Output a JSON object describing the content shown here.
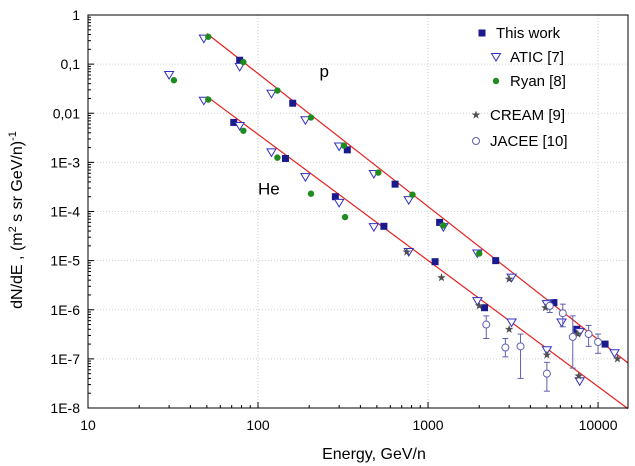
{
  "chart_data": {
    "type": "scatter",
    "xlabel": "Energy, GeV/n",
    "ylabel_parts": [
      "dN/dE , (m",
      "2",
      " s sr  GeV/n)",
      "-1"
    ],
    "x_scale": "log",
    "y_scale": "log",
    "xlim": [
      10,
      15000
    ],
    "ylim": [
      1e-08,
      1
    ],
    "x_ticks": [
      {
        "value": 10,
        "label": "10"
      },
      {
        "value": 100,
        "label": "100"
      },
      {
        "value": 1000,
        "label": "1000"
      },
      {
        "value": 10000,
        "label": "10000"
      }
    ],
    "y_ticks": [
      {
        "value": 1,
        "label": "1"
      },
      {
        "value": 0.1,
        "label": "0,1"
      },
      {
        "value": 0.01,
        "label": "0,01"
      },
      {
        "value": 0.001,
        "label": "1E-3"
      },
      {
        "value": 0.0001,
        "label": "1E-4"
      },
      {
        "value": 1e-05,
        "label": "1E-5"
      },
      {
        "value": 1e-06,
        "label": "1E-6"
      },
      {
        "value": 1e-07,
        "label": "1E-7"
      },
      {
        "value": 1e-08,
        "label": "1E-8"
      }
    ],
    "grid": true,
    "legend_position": "top-right",
    "annotations": [
      {
        "text": "p",
        "x": 230,
        "y": 0.055
      },
      {
        "text": "He",
        "x": 100,
        "y": 0.00022
      }
    ],
    "fits": [
      {
        "x": [
          50,
          15000
        ],
        "y": [
          0.42,
          8.25e-08
        ],
        "color": "#e82020"
      },
      {
        "x": [
          50,
          15000
        ],
        "y": [
          0.022,
          9.65e-09
        ],
        "color": "#e82020"
      }
    ],
    "series": [
      {
        "name": "This work",
        "marker": "square",
        "color": "#1a1a8c",
        "points": [
          {
            "x": 78,
            "y": 0.12
          },
          {
            "x": 160,
            "y": 0.016
          },
          {
            "x": 335,
            "y": 0.0018
          },
          {
            "x": 640,
            "y": 0.00036
          },
          {
            "x": 1170,
            "y": 6e-05
          },
          {
            "x": 2500,
            "y": 1e-05
          },
          {
            "x": 5500,
            "y": 1.4e-06
          },
          {
            "x": 11000,
            "y": 2e-07
          },
          {
            "x": 72,
            "y": 0.0065
          },
          {
            "x": 145,
            "y": 0.0012
          },
          {
            "x": 285,
            "y": 0.0002
          },
          {
            "x": 550,
            "y": 5e-05
          },
          {
            "x": 1100,
            "y": 9.5e-06
          },
          {
            "x": 2150,
            "y": 1.1e-06
          },
          {
            "x": 7500,
            "y": 4e-07
          }
        ]
      },
      {
        "name": "ATIC [7]",
        "marker": "triangle-down-open",
        "color": "#3030c0",
        "points": [
          {
            "x": 30,
            "y": 0.06
          },
          {
            "x": 48,
            "y": 0.33
          },
          {
            "x": 78,
            "y": 0.088
          },
          {
            "x": 120,
            "y": 0.025
          },
          {
            "x": 190,
            "y": 0.0072
          },
          {
            "x": 300,
            "y": 0.0021
          },
          {
            "x": 480,
            "y": 0.00058
          },
          {
            "x": 770,
            "y": 0.00017
          },
          {
            "x": 1230,
            "y": 4.8e-05
          },
          {
            "x": 1950,
            "y": 1.4e-05
          },
          {
            "x": 3100,
            "y": 4.5e-06
          },
          {
            "x": 5000,
            "y": 1.3e-06
          },
          {
            "x": 6100,
            "y": 5.5e-07
          },
          {
            "x": 7800,
            "y": 3.5e-07
          },
          {
            "x": 48,
            "y": 0.018
          },
          {
            "x": 78,
            "y": 0.0055
          },
          {
            "x": 120,
            "y": 0.0016
          },
          {
            "x": 190,
            "y": 0.0005
          },
          {
            "x": 300,
            "y": 0.00015
          },
          {
            "x": 480,
            "y": 4.8e-05
          },
          {
            "x": 770,
            "y": 1.5e-05
          },
          {
            "x": 1950,
            "y": 1.5e-06
          },
          {
            "x": 3100,
            "y": 5.5e-07
          },
          {
            "x": 5000,
            "y": 1.5e-07
          },
          {
            "x": 7800,
            "y": 3.5e-08
          },
          {
            "x": 12500,
            "y": 1.3e-07
          }
        ]
      },
      {
        "name": "Ryan [8]",
        "marker": "circle-filled",
        "color": "#1e8c1e",
        "points": [
          {
            "x": 32,
            "y": 0.047
          },
          {
            "x": 51,
            "y": 0.36
          },
          {
            "x": 82,
            "y": 0.11
          },
          {
            "x": 130,
            "y": 0.029
          },
          {
            "x": 205,
            "y": 0.0082
          },
          {
            "x": 320,
            "y": 0.0022
          },
          {
            "x": 510,
            "y": 0.00062
          },
          {
            "x": 810,
            "y": 0.00022
          },
          {
            "x": 1230,
            "y": 5.2e-05
          },
          {
            "x": 2000,
            "y": 1.4e-05
          },
          {
            "x": 51,
            "y": 0.019
          },
          {
            "x": 82,
            "y": 0.0044
          },
          {
            "x": 130,
            "y": 0.00125
          },
          {
            "x": 205,
            "y": 0.00023
          },
          {
            "x": 325,
            "y": 7.7e-05
          }
        ]
      },
      {
        "name": "CREAM [9]",
        "marker": "star",
        "color": "#505050",
        "points": [
          {
            "x": 750,
            "y": 1.5e-05
          },
          {
            "x": 1200,
            "y": 4.5e-06
          },
          {
            "x": 2000,
            "y": 1.2e-06
          },
          {
            "x": 3000,
            "y": 4e-07
          },
          {
            "x": 4900,
            "y": 1.1e-06
          },
          {
            "x": 5000,
            "y": 1.2e-07
          },
          {
            "x": 7600,
            "y": 3.2e-07
          },
          {
            "x": 7700,
            "y": 4.5e-08
          },
          {
            "x": 13000,
            "y": 1e-07
          },
          {
            "x": 3000,
            "y": 4.2e-06
          }
        ]
      },
      {
        "name": "JACEE [10]",
        "marker": "circle-open",
        "color": "#6060b0",
        "points": [
          {
            "x": 2200,
            "y": 5e-07,
            "lo": 2.6e-07,
            "hi": 7.5e-07
          },
          {
            "x": 2850,
            "y": 1.7e-07,
            "lo": 1.1e-07,
            "hi": 2.6e-07
          },
          {
            "x": 3500,
            "y": 1.8e-07,
            "lo": 4e-08,
            "hi": 3.2e-07
          },
          {
            "x": 5000,
            "y": 5e-08,
            "lo": 2.2e-08,
            "hi": 8.5e-08
          },
          {
            "x": 5200,
            "y": 1.2e-06,
            "lo": 8.8e-07,
            "hi": 1.6e-06
          },
          {
            "x": 6200,
            "y": 8.5e-07,
            "lo": 4.5e-07,
            "hi": 1.3e-06
          },
          {
            "x": 7100,
            "y": 2.8e-07,
            "lo": 6.5e-08,
            "hi": 7.5e-07
          },
          {
            "x": 8800,
            "y": 3.2e-07,
            "lo": 1.8e-07,
            "hi": 4.8e-07
          },
          {
            "x": 10000,
            "y": 2.2e-07,
            "lo": 1.3e-07,
            "hi": 3.2e-07
          }
        ]
      }
    ]
  }
}
